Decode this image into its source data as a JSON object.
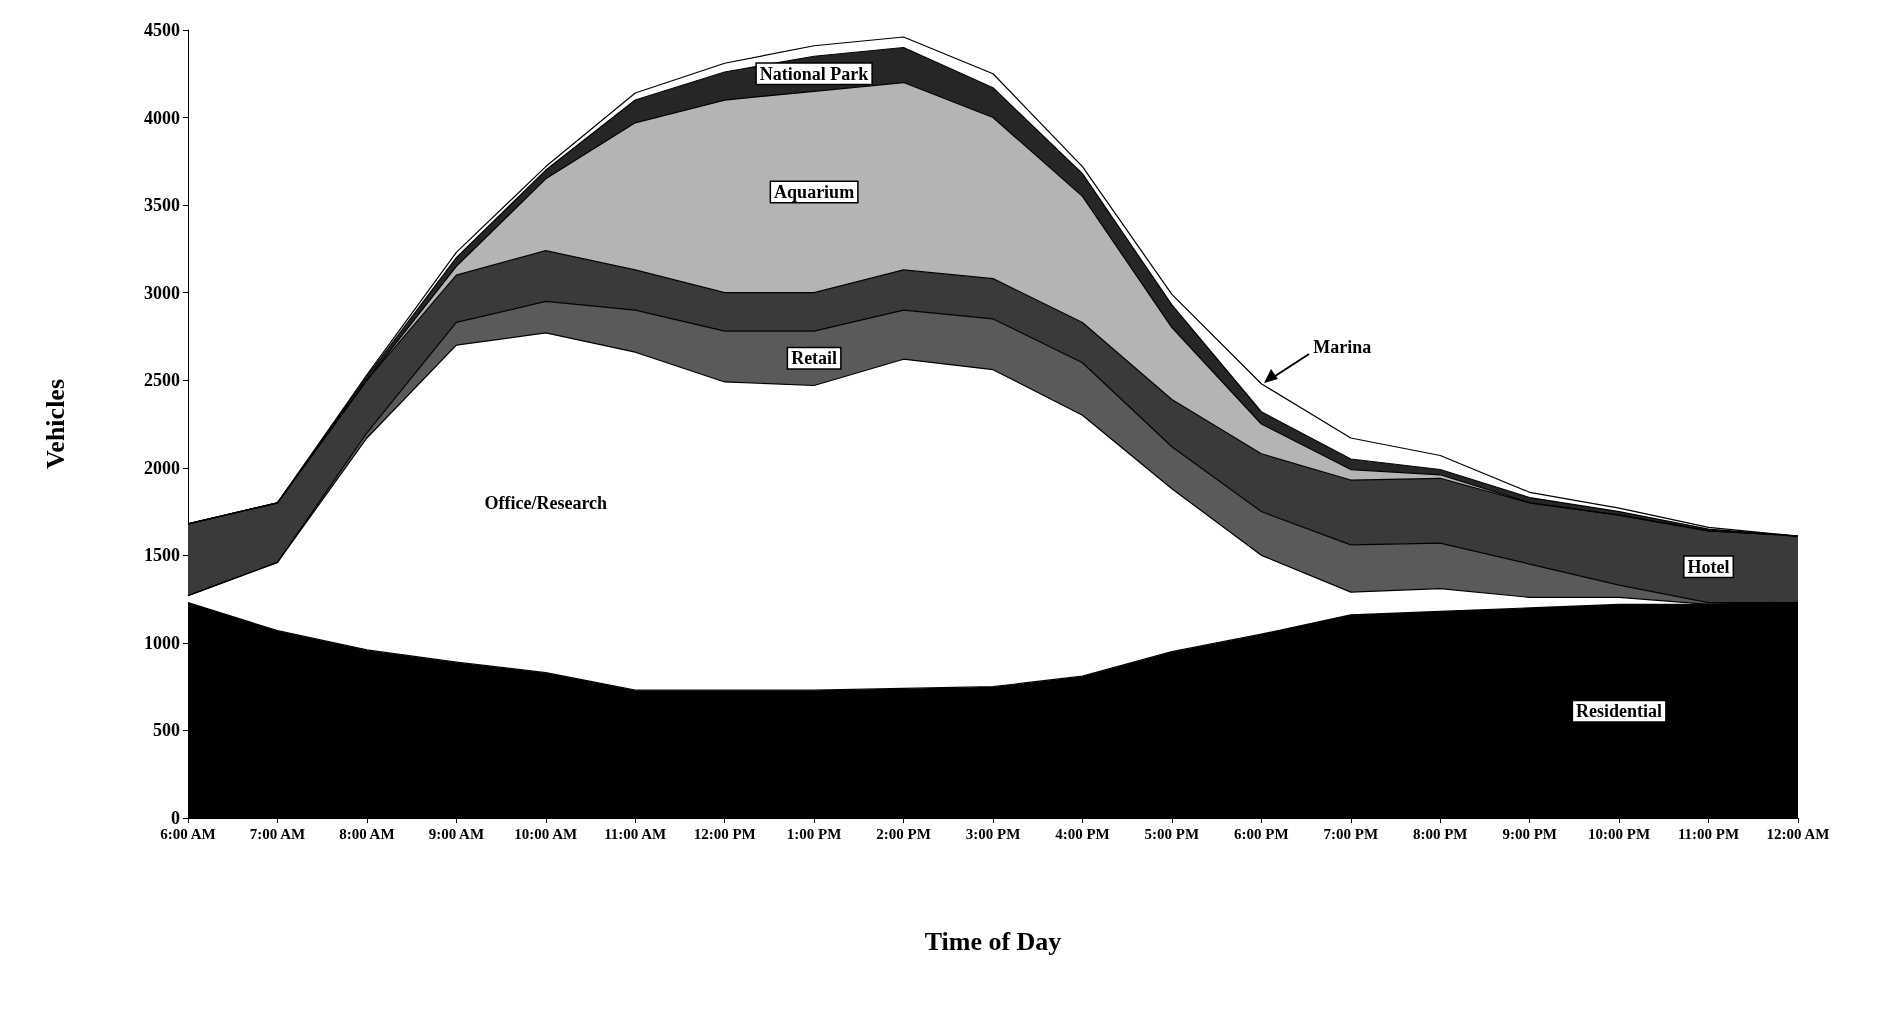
{
  "chart_data": {
    "type": "area",
    "stacked": true,
    "xlabel": "Time of Day",
    "ylabel": "Vehicles",
    "categories": [
      "6:00 AM",
      "7:00 AM",
      "8:00 AM",
      "9:00 AM",
      "10:00 AM",
      "11:00 AM",
      "12:00 PM",
      "1:00 PM",
      "2:00 PM",
      "3:00 PM",
      "4:00 PM",
      "5:00 PM",
      "6:00 PM",
      "7:00 PM",
      "8:00 PM",
      "9:00 PM",
      "10:00 PM",
      "11:00 PM",
      "12:00 AM"
    ],
    "ylim": [
      0,
      4500
    ],
    "yticks": [
      0,
      500,
      1000,
      1500,
      2000,
      2500,
      3000,
      3500,
      4000,
      4500
    ],
    "grid": false,
    "legend": false,
    "series": [
      {
        "name": "Residential",
        "color": "#000000",
        "values": [
          1230,
          1070,
          960,
          890,
          830,
          730,
          730,
          730,
          740,
          750,
          810,
          950,
          1050,
          1160,
          1180,
          1200,
          1220,
          1220,
          1230
        ]
      },
      {
        "name": "Office/Research",
        "color": "#ffffff",
        "values": [
          40,
          390,
          1210,
          1810,
          1940,
          1930,
          1760,
          1740,
          1880,
          1810,
          1490,
          930,
          450,
          130,
          130,
          60,
          40,
          0,
          0
        ]
      },
      {
        "name": "Retail",
        "color": "#5a5a5a",
        "values": [
          0,
          0,
          30,
          130,
          180,
          240,
          290,
          310,
          280,
          290,
          300,
          240,
          250,
          270,
          260,
          190,
          70,
          10,
          0
        ]
      },
      {
        "name": "Hotel",
        "color": "#3a3a3a",
        "values": [
          410,
          340,
          300,
          270,
          290,
          230,
          220,
          220,
          230,
          230,
          230,
          270,
          330,
          370,
          370,
          350,
          400,
          410,
          380
        ]
      },
      {
        "name": "Aquarium",
        "color": "#b4b4b4",
        "values": [
          0,
          0,
          0,
          50,
          410,
          840,
          1100,
          1150,
          1070,
          920,
          720,
          410,
          170,
          60,
          20,
          0,
          0,
          0,
          0
        ]
      },
      {
        "name": "National Park",
        "color": "#262626",
        "values": [
          0,
          0,
          20,
          50,
          50,
          130,
          160,
          200,
          200,
          170,
          130,
          130,
          70,
          60,
          30,
          30,
          20,
          10,
          0
        ]
      },
      {
        "name": "Marina",
        "color": "#ffffff",
        "values": [
          0,
          0,
          10,
          30,
          20,
          40,
          50,
          60,
          60,
          80,
          40,
          60,
          160,
          120,
          80,
          30,
          20,
          10,
          0
        ]
      }
    ]
  }
}
